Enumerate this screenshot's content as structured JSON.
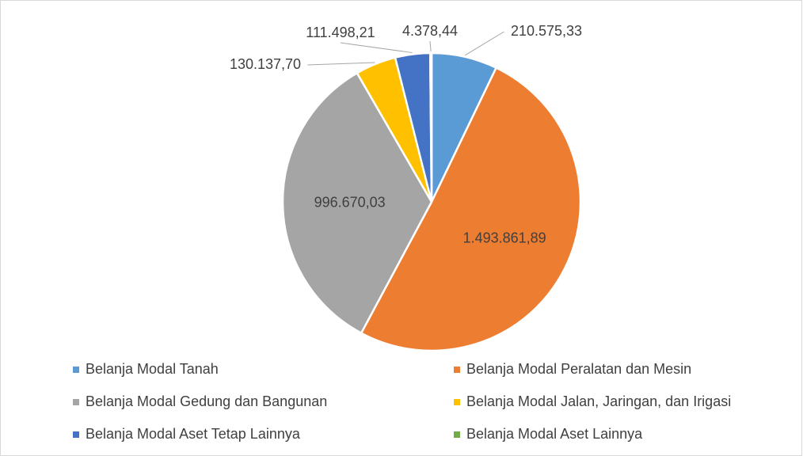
{
  "chart_data": {
    "type": "pie",
    "categories": [
      "Belanja Modal Tanah",
      "Belanja Modal Peralatan dan Mesin",
      "Belanja Modal Gedung dan Bangunan",
      "Belanja Modal Jalan, Jaringan, dan Irigasi",
      "Belanja Modal Aset Tetap Lainnya",
      "Belanja Modal Aset Lainnya"
    ],
    "values": [
      210575.33,
      1493861.89,
      996670.03,
      130137.7,
      111498.21,
      4378.44
    ],
    "value_labels": [
      "210.575,33",
      "1.493.861,89",
      "996.670,03",
      "130.137,70",
      "111.498,21",
      "4.378,44"
    ],
    "colors": [
      "#5b9bd5",
      "#ed7d31",
      "#a5a5a5",
      "#ffc000",
      "#4472c4",
      "#70ad47"
    ],
    "legend": "bottom"
  }
}
